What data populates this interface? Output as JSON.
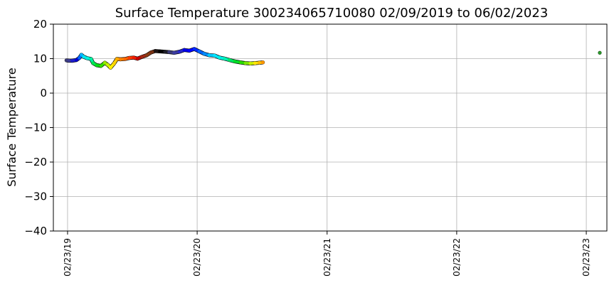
{
  "chart_data": {
    "type": "scatter",
    "title": "Surface Temperature 300234065710080  02/09/2019 to 06/02/2023",
    "xlabel": "",
    "ylabel": "Surface Temperature",
    "xlim": [
      "2019-01-14",
      "2023-04-22"
    ],
    "ylim": [
      -40,
      20
    ],
    "yticks": [
      20,
      10,
      0,
      -10,
      -20,
      -30,
      -40
    ],
    "xticks": [
      {
        "date": "2019-02-23",
        "label": "02/23/19"
      },
      {
        "date": "2020-02-23",
        "label": "02/23/20"
      },
      {
        "date": "2021-02-23",
        "label": "02/23/21"
      },
      {
        "date": "2022-02-23",
        "label": "02/23/22"
      },
      {
        "date": "2023-02-23",
        "label": "02/23/23"
      }
    ],
    "grid": true,
    "colormap": "jet-like color cycle along time",
    "series": [
      {
        "values": [
          {
            "x": "2019-02-20",
            "y": 9.5,
            "color": "#3c3c78"
          },
          {
            "x": "2019-02-27",
            "y": 9.4,
            "color": "#3c3c96"
          },
          {
            "x": "2019-03-08",
            "y": 9.4,
            "color": "#1e1ec8"
          },
          {
            "x": "2019-03-20",
            "y": 9.6,
            "color": "#0000d2"
          },
          {
            "x": "2019-03-28",
            "y": 10.2,
            "color": "#0064ff"
          },
          {
            "x": "2019-04-03",
            "y": 11.1,
            "color": "#00b4ff"
          },
          {
            "x": "2019-04-10",
            "y": 10.5,
            "color": "#00e6f0"
          },
          {
            "x": "2019-04-20",
            "y": 10.1,
            "color": "#00f0dc"
          },
          {
            "x": "2019-04-30",
            "y": 9.9,
            "color": "#00f0a0"
          },
          {
            "x": "2019-05-06",
            "y": 8.7,
            "color": "#00e650"
          },
          {
            "x": "2019-05-16",
            "y": 8.1,
            "color": "#00dc14"
          },
          {
            "x": "2019-05-28",
            "y": 7.9,
            "color": "#32dc00"
          },
          {
            "x": "2019-06-08",
            "y": 8.8,
            "color": "#96e600"
          },
          {
            "x": "2019-06-16",
            "y": 8.2,
            "color": "#c8f000"
          },
          {
            "x": "2019-06-24",
            "y": 7.4,
            "color": "#fff000"
          },
          {
            "x": "2019-07-04",
            "y": 8.6,
            "color": "#ffd200"
          },
          {
            "x": "2019-07-12",
            "y": 9.9,
            "color": "#ffaa00"
          },
          {
            "x": "2019-07-22",
            "y": 9.8,
            "color": "#ff8200"
          },
          {
            "x": "2019-08-04",
            "y": 9.9,
            "color": "#ff6400"
          },
          {
            "x": "2019-08-16",
            "y": 10.2,
            "color": "#ff3c00"
          },
          {
            "x": "2019-08-28",
            "y": 10.3,
            "color": "#f01e00"
          },
          {
            "x": "2019-09-08",
            "y": 10.0,
            "color": "#c80000"
          },
          {
            "x": "2019-09-20",
            "y": 10.5,
            "color": "#a02814"
          },
          {
            "x": "2019-10-04",
            "y": 11.0,
            "color": "#8c3c14"
          },
          {
            "x": "2019-10-16",
            "y": 11.8,
            "color": "#783214"
          },
          {
            "x": "2019-10-28",
            "y": 12.2,
            "color": "#1e1414"
          },
          {
            "x": "2019-11-10",
            "y": 12.1,
            "color": "#000000"
          },
          {
            "x": "2019-11-24",
            "y": 12.0,
            "color": "#1e1e28"
          },
          {
            "x": "2019-12-06",
            "y": 11.9,
            "color": "#3c3c78"
          },
          {
            "x": "2019-12-20",
            "y": 11.7,
            "color": "#3c3ca0"
          },
          {
            "x": "2020-01-04",
            "y": 12.0,
            "color": "#2828c8"
          },
          {
            "x": "2020-01-18",
            "y": 12.5,
            "color": "#0000e6"
          },
          {
            "x": "2020-02-01",
            "y": 12.3,
            "color": "#0000ff"
          },
          {
            "x": "2020-02-15",
            "y": 12.8,
            "color": "#0028ff"
          },
          {
            "x": "2020-02-29",
            "y": 12.1,
            "color": "#0064ff"
          },
          {
            "x": "2020-03-14",
            "y": 11.4,
            "color": "#008cff"
          },
          {
            "x": "2020-03-28",
            "y": 11.0,
            "color": "#00c8ff"
          },
          {
            "x": "2020-04-12",
            "y": 10.9,
            "color": "#00e6ff"
          },
          {
            "x": "2020-04-26",
            "y": 10.3,
            "color": "#00f0e6"
          },
          {
            "x": "2020-05-10",
            "y": 10.0,
            "color": "#00f0b4"
          },
          {
            "x": "2020-05-24",
            "y": 9.6,
            "color": "#00e664"
          },
          {
            "x": "2020-06-08",
            "y": 9.2,
            "color": "#00dc28"
          },
          {
            "x": "2020-06-24",
            "y": 8.9,
            "color": "#28dc00"
          },
          {
            "x": "2020-07-08",
            "y": 8.7,
            "color": "#78e600"
          },
          {
            "x": "2020-07-22",
            "y": 8.6,
            "color": "#c8f000"
          },
          {
            "x": "2020-08-04",
            "y": 8.7,
            "color": "#ffe600"
          },
          {
            "x": "2020-08-16",
            "y": 8.8,
            "color": "#ffbe00"
          },
          {
            "x": "2020-08-26",
            "y": 8.9,
            "color": "#ff9600"
          },
          {
            "x": "2023-04-02",
            "y": 11.7,
            "color": "#2ca02c"
          }
        ]
      }
    ]
  }
}
